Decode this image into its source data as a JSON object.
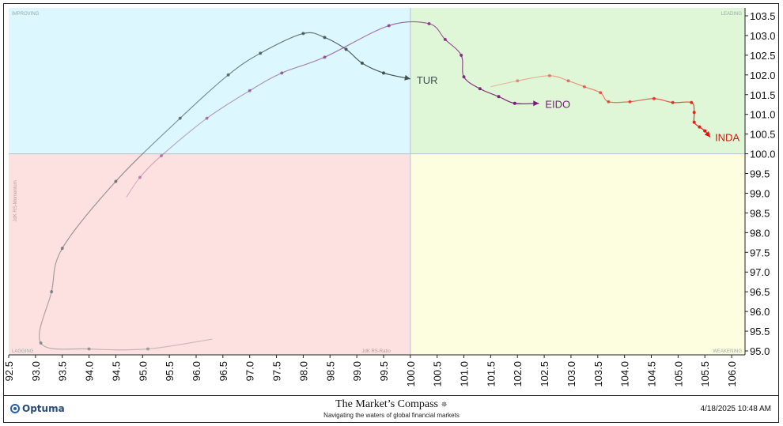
{
  "chart_data": {
    "type": "line",
    "title": "",
    "xlabel": "JdK RS-Ratio",
    "ylabel": "JdK RS-Momentum",
    "xlim": [
      92.5,
      106.25
    ],
    "ylim": [
      94.9,
      103.7
    ],
    "x_ticks": [
      "92.5",
      "93.0",
      "93.5",
      "94.0",
      "94.5",
      "95.0",
      "95.5",
      "96.0",
      "96.5",
      "97.0",
      "97.5",
      "98.0",
      "98.5",
      "99.0",
      "99.5",
      "100.0",
      "100.5",
      "101.0",
      "101.5",
      "102.0",
      "102.5",
      "103.0",
      "103.5",
      "104.0",
      "104.5",
      "105.0",
      "105.5",
      "106.0"
    ],
    "y_ticks": [
      "95.0",
      "95.5",
      "96.0",
      "96.5",
      "97.0",
      "97.5",
      "98.0",
      "98.5",
      "99.0",
      "99.5",
      "100.0",
      "100.5",
      "101.0",
      "101.5",
      "102.0",
      "102.5",
      "103.0",
      "103.5"
    ],
    "quadrants": [
      {
        "label": "IMPROVING",
        "color": "#dcf7fd"
      },
      {
        "label": "LEADING",
        "color": "#dff7d6"
      },
      {
        "label": "LAGGING",
        "color": "#fde0e0"
      },
      {
        "label": "WEAKENING",
        "color": "#fdfde0"
      }
    ],
    "series": [
      {
        "name": "TUR",
        "color": "#3f5050",
        "x": [
          96.3,
          95.1,
          94.0,
          93.1,
          93.3,
          93.5,
          94.5,
          95.7,
          96.6,
          97.2,
          98.0,
          98.4,
          98.8,
          99.1,
          99.5,
          100.0
        ],
        "y": [
          95.3,
          95.05,
          95.05,
          95.2,
          96.5,
          97.6,
          99.3,
          100.9,
          102.0,
          102.55,
          103.05,
          102.95,
          102.65,
          102.3,
          102.05,
          101.9
        ]
      },
      {
        "name": "EIDO",
        "color": "#7a1a7a",
        "x": [
          94.7,
          94.95,
          95.35,
          96.2,
          97.0,
          97.6,
          98.4,
          99.6,
          100.35,
          100.65,
          100.95,
          101.0,
          101.3,
          101.65,
          101.95,
          102.4
        ],
        "y": [
          98.9,
          99.4,
          99.95,
          100.9,
          101.6,
          102.05,
          102.45,
          103.25,
          103.3,
          102.9,
          102.5,
          101.95,
          101.65,
          101.45,
          101.28,
          101.28
        ]
      },
      {
        "name": "INDA",
        "color": "#e81010",
        "x": [
          101.5,
          102.0,
          102.6,
          102.95,
          103.25,
          103.55,
          103.7,
          104.1,
          104.55,
          104.9,
          105.25,
          105.3,
          105.3,
          105.4,
          105.5,
          105.6
        ],
        "y": [
          101.7,
          101.85,
          101.98,
          101.85,
          101.7,
          101.55,
          101.32,
          101.32,
          101.4,
          101.3,
          101.3,
          101.05,
          100.8,
          100.68,
          100.58,
          100.42
        ]
      }
    ]
  },
  "footer": {
    "logo_text": "Optuma",
    "brand_title": "The Market’s Compass",
    "brand_tagline": "Navigating the waters of global financial markets",
    "timestamp": "4/18/2025 10:48 AM"
  }
}
